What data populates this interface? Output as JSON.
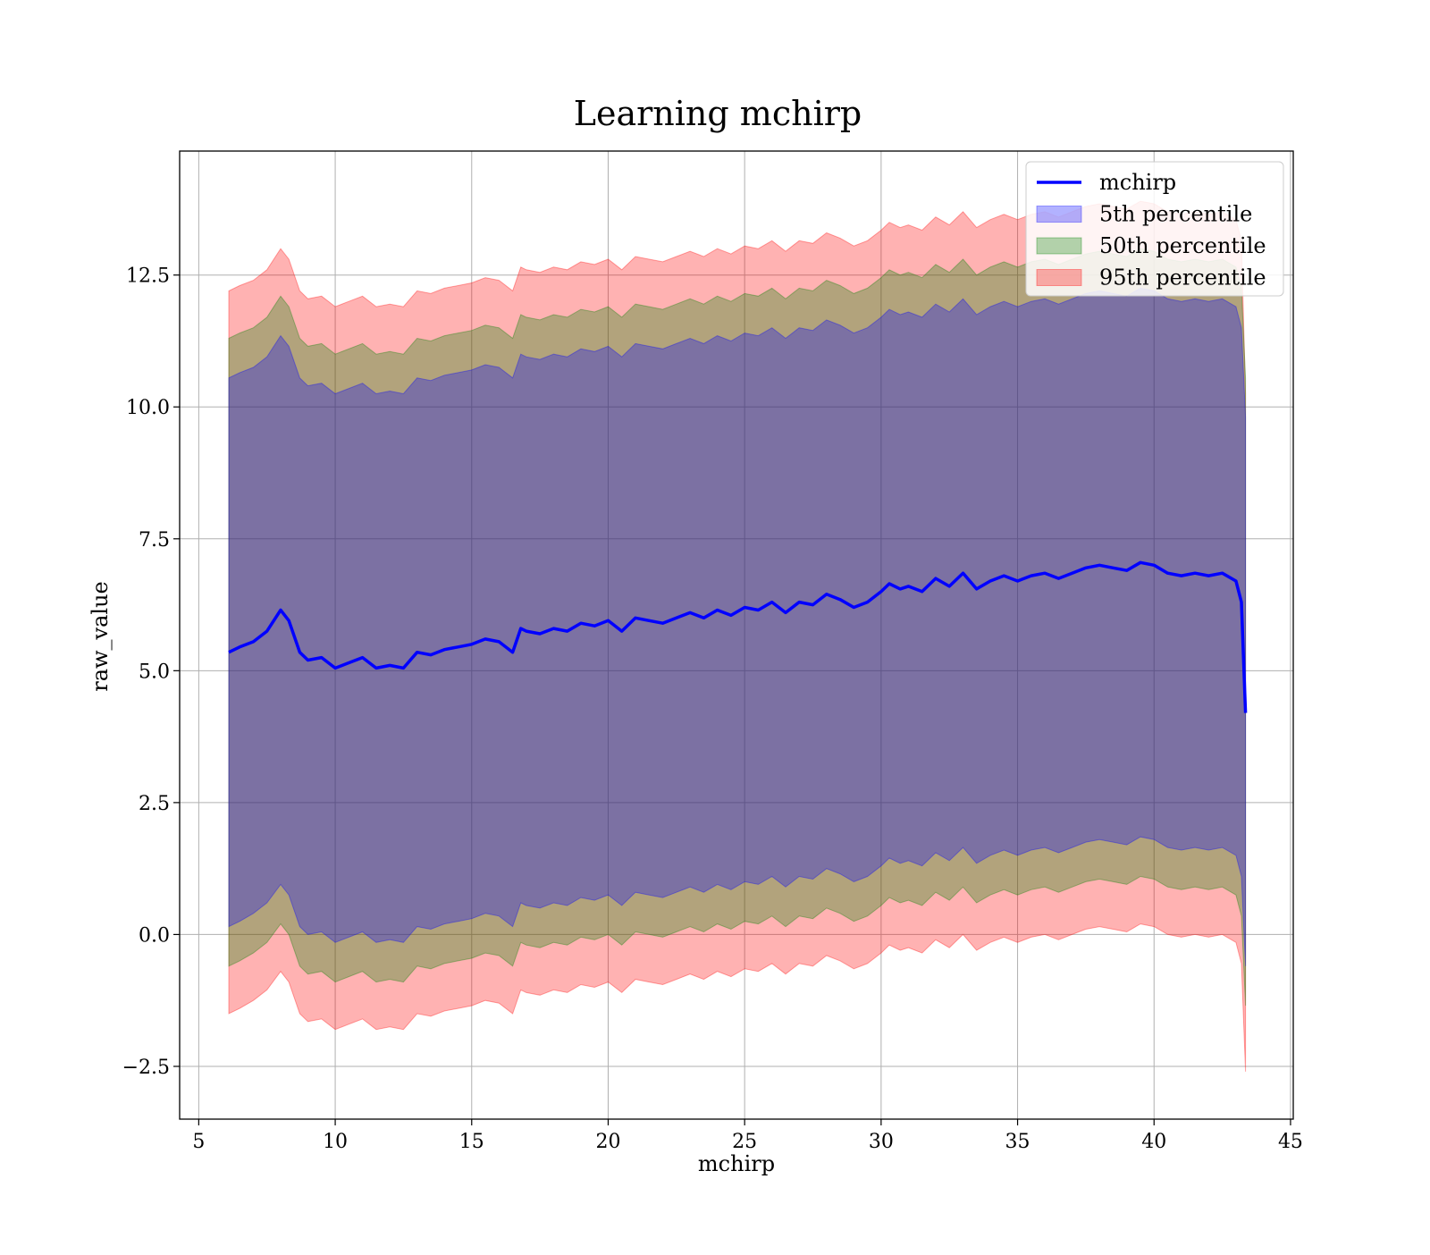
{
  "chart_data": {
    "type": "area",
    "title": "Learning mchirp",
    "xlabel": "mchirp",
    "ylabel": "raw_value",
    "xlim": [
      4.3,
      45.1
    ],
    "ylim": [
      -3.5,
      14.85
    ],
    "xticks": [
      5,
      10,
      15,
      20,
      25,
      30,
      35,
      40,
      45
    ],
    "xtick_labels": [
      "5",
      "10",
      "15",
      "20",
      "25",
      "30",
      "35",
      "40",
      "45"
    ],
    "yticks": [
      -2.5,
      0.0,
      2.5,
      5.0,
      7.5,
      10.0,
      12.5
    ],
    "ytick_labels": [
      "−2.5",
      "0.0",
      "2.5",
      "5.0",
      "7.5",
      "10.0",
      "12.5"
    ],
    "grid": true,
    "legend_position": "top-right",
    "x": [
      6.1,
      6.5,
      7.0,
      7.5,
      8.0,
      8.3,
      8.7,
      9.0,
      9.5,
      10.0,
      10.5,
      11.0,
      11.5,
      12.0,
      12.5,
      13.0,
      13.5,
      14.0,
      14.5,
      15.0,
      15.5,
      16.0,
      16.5,
      16.8,
      17.0,
      17.5,
      18.0,
      18.5,
      19.0,
      19.5,
      20.0,
      20.5,
      21.0,
      21.5,
      22.0,
      22.5,
      23.0,
      23.5,
      24.0,
      24.5,
      25.0,
      25.5,
      26.0,
      26.5,
      27.0,
      27.5,
      28.0,
      28.5,
      29.0,
      29.5,
      30.0,
      30.3,
      30.7,
      31.0,
      31.5,
      32.0,
      32.5,
      33.0,
      33.5,
      34.0,
      34.5,
      35.0,
      35.5,
      36.0,
      36.5,
      37.0,
      37.5,
      38.0,
      38.5,
      39.0,
      39.5,
      40.0,
      40.5,
      41.0,
      41.5,
      42.0,
      42.5,
      43.0,
      43.2,
      43.35
    ],
    "series": [
      {
        "name": "mchirp",
        "kind": "line",
        "color": "#0000ff",
        "values": [
          5.35,
          5.45,
          5.55,
          5.75,
          6.15,
          5.95,
          5.35,
          5.2,
          5.25,
          5.05,
          5.15,
          5.25,
          5.05,
          5.1,
          5.05,
          5.35,
          5.3,
          5.4,
          5.45,
          5.5,
          5.6,
          5.55,
          5.35,
          5.8,
          5.75,
          5.7,
          5.8,
          5.75,
          5.9,
          5.85,
          5.95,
          5.75,
          6.0,
          5.95,
          5.9,
          6.0,
          6.1,
          6.0,
          6.15,
          6.05,
          6.2,
          6.15,
          6.3,
          6.1,
          6.3,
          6.25,
          6.45,
          6.35,
          6.2,
          6.3,
          6.5,
          6.65,
          6.55,
          6.6,
          6.5,
          6.75,
          6.6,
          6.85,
          6.55,
          6.7,
          6.8,
          6.7,
          6.8,
          6.85,
          6.75,
          6.85,
          6.95,
          7.0,
          6.95,
          6.9,
          7.05,
          7.0,
          6.85,
          6.8,
          6.85,
          6.8,
          6.85,
          6.7,
          6.3,
          4.2
        ]
      },
      {
        "name": "5th percentile",
        "kind": "band",
        "color": "#0000ff",
        "lower": [
          0.15,
          0.25,
          0.4,
          0.6,
          0.95,
          0.75,
          0.15,
          0.0,
          0.05,
          -0.15,
          -0.05,
          0.05,
          -0.15,
          -0.1,
          -0.15,
          0.15,
          0.1,
          0.2,
          0.25,
          0.3,
          0.4,
          0.35,
          0.15,
          0.6,
          0.55,
          0.5,
          0.6,
          0.55,
          0.7,
          0.65,
          0.75,
          0.55,
          0.8,
          0.75,
          0.7,
          0.8,
          0.9,
          0.8,
          0.95,
          0.85,
          1.0,
          0.95,
          1.1,
          0.9,
          1.1,
          1.05,
          1.25,
          1.15,
          1.0,
          1.1,
          1.3,
          1.45,
          1.35,
          1.4,
          1.3,
          1.55,
          1.4,
          1.65,
          1.35,
          1.5,
          1.6,
          1.5,
          1.6,
          1.65,
          1.55,
          1.65,
          1.75,
          1.8,
          1.75,
          1.7,
          1.85,
          1.8,
          1.65,
          1.6,
          1.65,
          1.6,
          1.65,
          1.5,
          1.1,
          -0.6
        ],
        "upper": [
          10.55,
          10.65,
          10.75,
          10.95,
          11.35,
          11.15,
          10.55,
          10.4,
          10.45,
          10.25,
          10.35,
          10.45,
          10.25,
          10.3,
          10.25,
          10.55,
          10.5,
          10.6,
          10.65,
          10.7,
          10.8,
          10.75,
          10.55,
          11.0,
          10.95,
          10.9,
          11.0,
          10.95,
          11.1,
          11.05,
          11.15,
          10.95,
          11.2,
          11.15,
          11.1,
          11.2,
          11.3,
          11.2,
          11.35,
          11.25,
          11.4,
          11.35,
          11.5,
          11.3,
          11.5,
          11.45,
          11.65,
          11.55,
          11.4,
          11.5,
          11.7,
          11.85,
          11.75,
          11.8,
          11.7,
          11.95,
          11.8,
          12.05,
          11.75,
          11.9,
          12.0,
          11.9,
          12.0,
          12.05,
          11.95,
          12.05,
          12.15,
          12.2,
          12.15,
          12.1,
          12.25,
          12.2,
          12.05,
          12.0,
          12.05,
          12.0,
          12.05,
          11.9,
          11.5,
          9.8
        ]
      },
      {
        "name": "50th percentile",
        "kind": "band",
        "color": "#008000",
        "lower": [
          -0.6,
          -0.5,
          -0.35,
          -0.15,
          0.2,
          0.0,
          -0.6,
          -0.75,
          -0.7,
          -0.9,
          -0.8,
          -0.7,
          -0.9,
          -0.85,
          -0.9,
          -0.6,
          -0.65,
          -0.55,
          -0.5,
          -0.45,
          -0.35,
          -0.4,
          -0.6,
          -0.15,
          -0.2,
          -0.25,
          -0.15,
          -0.2,
          -0.05,
          -0.1,
          0.0,
          -0.2,
          0.05,
          0.0,
          -0.05,
          0.05,
          0.15,
          0.05,
          0.2,
          0.1,
          0.25,
          0.2,
          0.35,
          0.15,
          0.35,
          0.3,
          0.5,
          0.4,
          0.25,
          0.35,
          0.55,
          0.7,
          0.6,
          0.65,
          0.55,
          0.8,
          0.65,
          0.9,
          0.6,
          0.75,
          0.85,
          0.75,
          0.85,
          0.9,
          0.8,
          0.9,
          1.0,
          1.05,
          1.0,
          0.95,
          1.1,
          1.05,
          0.9,
          0.85,
          0.9,
          0.85,
          0.9,
          0.75,
          0.35,
          -1.35
        ],
        "upper": [
          11.3,
          11.4,
          11.5,
          11.7,
          12.1,
          11.9,
          11.3,
          11.15,
          11.2,
          11.0,
          11.1,
          11.2,
          11.0,
          11.05,
          11.0,
          11.3,
          11.25,
          11.35,
          11.4,
          11.45,
          11.55,
          11.5,
          11.3,
          11.75,
          11.7,
          11.65,
          11.75,
          11.7,
          11.85,
          11.8,
          11.9,
          11.7,
          11.95,
          11.9,
          11.85,
          11.95,
          12.05,
          11.95,
          12.1,
          12.0,
          12.15,
          12.1,
          12.25,
          12.05,
          12.25,
          12.2,
          12.4,
          12.3,
          12.15,
          12.25,
          12.45,
          12.6,
          12.5,
          12.55,
          12.45,
          12.7,
          12.55,
          12.8,
          12.5,
          12.65,
          12.75,
          12.65,
          12.75,
          12.8,
          12.7,
          12.8,
          12.9,
          12.95,
          12.9,
          12.85,
          13.0,
          12.95,
          12.8,
          12.75,
          12.8,
          12.75,
          12.8,
          12.65,
          12.25,
          10.55
        ]
      },
      {
        "name": "95th percentile",
        "kind": "band",
        "color": "#ff0000",
        "lower": [
          -1.5,
          -1.4,
          -1.25,
          -1.05,
          -0.7,
          -0.9,
          -1.5,
          -1.65,
          -1.6,
          -1.8,
          -1.7,
          -1.6,
          -1.8,
          -1.75,
          -1.8,
          -1.5,
          -1.55,
          -1.45,
          -1.4,
          -1.35,
          -1.25,
          -1.3,
          -1.5,
          -1.05,
          -1.1,
          -1.15,
          -1.05,
          -1.1,
          -0.95,
          -1.0,
          -0.9,
          -1.1,
          -0.85,
          -0.9,
          -0.95,
          -0.85,
          -0.75,
          -0.85,
          -0.7,
          -0.8,
          -0.65,
          -0.7,
          -0.55,
          -0.75,
          -0.55,
          -0.6,
          -0.4,
          -0.5,
          -0.65,
          -0.55,
          -0.35,
          -0.2,
          -0.3,
          -0.25,
          -0.35,
          -0.1,
          -0.25,
          0.0,
          -0.3,
          -0.15,
          -0.05,
          -0.15,
          -0.05,
          0.0,
          -0.1,
          0.0,
          0.1,
          0.15,
          0.1,
          0.05,
          0.2,
          0.15,
          0.0,
          -0.05,
          0.0,
          -0.05,
          0.0,
          -0.15,
          -0.55,
          -2.6
        ],
        "upper": [
          12.2,
          12.3,
          12.4,
          12.6,
          13.0,
          12.8,
          12.2,
          12.05,
          12.1,
          11.9,
          12.0,
          12.1,
          11.9,
          11.95,
          11.9,
          12.2,
          12.15,
          12.25,
          12.3,
          12.35,
          12.45,
          12.4,
          12.2,
          12.65,
          12.6,
          12.55,
          12.65,
          12.6,
          12.75,
          12.7,
          12.8,
          12.6,
          12.85,
          12.8,
          12.75,
          12.85,
          12.95,
          12.85,
          13.0,
          12.9,
          13.05,
          13.0,
          13.15,
          12.95,
          13.15,
          13.1,
          13.3,
          13.2,
          13.05,
          13.15,
          13.35,
          13.5,
          13.4,
          13.45,
          13.35,
          13.6,
          13.45,
          13.7,
          13.4,
          13.55,
          13.65,
          13.55,
          13.65,
          13.7,
          13.6,
          13.7,
          13.8,
          13.85,
          13.8,
          13.75,
          13.9,
          13.85,
          13.7,
          13.65,
          13.7,
          13.65,
          13.7,
          13.55,
          13.15,
          10.25
        ]
      }
    ]
  }
}
